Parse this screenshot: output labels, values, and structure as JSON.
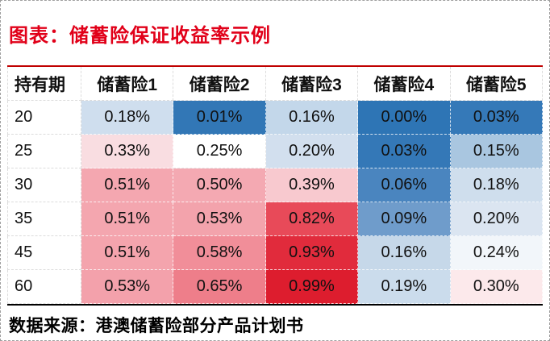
{
  "title": "图表：储蓄险保证收益率示例",
  "source": "数据来源：港澳储蓄险部分产品计划书",
  "accent_colors": {
    "title_red": "#e10019",
    "rule_red": "#c00000",
    "rule_black": "#000000",
    "frame_dash_gray": "#9e9e9e"
  },
  "chart_data": {
    "type": "heatmap",
    "title": "储蓄险保证收益率示例",
    "columns": [
      "持有期",
      "储蓄险1",
      "储蓄险2",
      "储蓄险3",
      "储蓄险4",
      "储蓄险5"
    ],
    "legend_note": "cell colors: blue = low yield, white = mid, red = high yield",
    "rows": [
      {
        "period": "20",
        "values": [
          "0.18%",
          "0.01%",
          "0.16%",
          "0.00%",
          "0.03%"
        ],
        "colors": [
          "#cfdeee",
          "#3277b6",
          "#c3d7ea",
          "#2e75b5",
          "#3579b8"
        ]
      },
      {
        "period": "25",
        "values": [
          "0.33%",
          "0.25%",
          "0.20%",
          "0.03%",
          "0.15%"
        ],
        "colors": [
          "#f9dde1",
          "#ffffff",
          "#d2dfee",
          "#3478b7",
          "#a9c6e0"
        ]
      },
      {
        "period": "30",
        "values": [
          "0.51%",
          "0.50%",
          "0.39%",
          "0.06%",
          "0.18%"
        ],
        "colors": [
          "#f4a7b0",
          "#f4a9b2",
          "#f8c9cf",
          "#4a85bf",
          "#cfdeed"
        ]
      },
      {
        "period": "35",
        "values": [
          "0.51%",
          "0.53%",
          "0.82%",
          "0.09%",
          "0.20%"
        ],
        "colors": [
          "#f4a6af",
          "#f3a3ac",
          "#e84a59",
          "#6f9ccb",
          "#dbe5f1"
        ]
      },
      {
        "period": "45",
        "values": [
          "0.51%",
          "0.58%",
          "0.93%",
          "0.16%",
          "0.24%"
        ],
        "colors": [
          "#f4a4ad",
          "#f18e99",
          "#e12b3c",
          "#c6d8e9",
          "#f2f6fa"
        ]
      },
      {
        "period": "60",
        "values": [
          "0.53%",
          "0.65%",
          "0.99%",
          "0.19%",
          "0.30%"
        ],
        "colors": [
          "#f3a1ab",
          "#ee7e8a",
          "#dd1d2e",
          "#cbdcec",
          "#fce9eb"
        ]
      }
    ]
  }
}
